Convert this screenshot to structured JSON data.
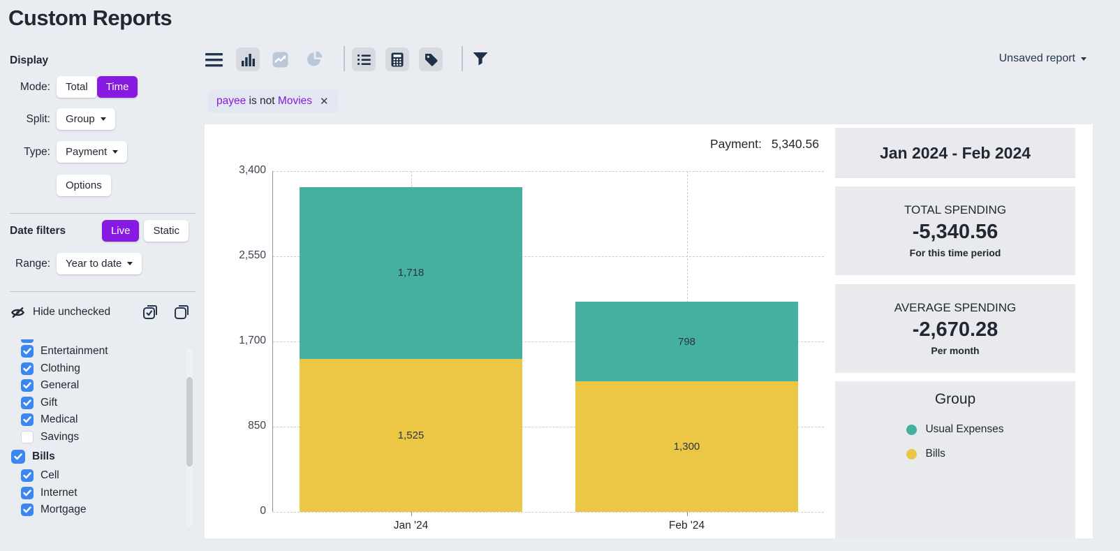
{
  "page": {
    "title": "Custom Reports",
    "report_menu_label": "Unsaved report"
  },
  "sidebar": {
    "display": {
      "heading": "Display",
      "mode_label": "Mode:",
      "mode_total": "Total",
      "mode_time": "Time",
      "mode_selected": "Time",
      "split_label": "Split:",
      "split_value": "Group",
      "type_label": "Type:",
      "type_value": "Payment",
      "options_label": "Options"
    },
    "date_filters": {
      "heading": "Date filters",
      "live": "Live",
      "static": "Static",
      "selected": "Live",
      "range_label": "Range:",
      "range_value": "Year to date"
    },
    "categories": {
      "hide_unchecked_label": "Hide unchecked",
      "select_all_icon": "select-all",
      "deselect_all_icon": "deselect-all",
      "items": [
        {
          "label": "",
          "checked": true,
          "indent": 1,
          "clipped": true
        },
        {
          "label": "Entertainment",
          "checked": true,
          "indent": 1
        },
        {
          "label": "Clothing",
          "checked": true,
          "indent": 1
        },
        {
          "label": "General",
          "checked": true,
          "indent": 1
        },
        {
          "label": "Gift",
          "checked": true,
          "indent": 1
        },
        {
          "label": "Medical",
          "checked": true,
          "indent": 1
        },
        {
          "label": "Savings",
          "checked": false,
          "indent": 1
        },
        {
          "label": "Bills",
          "checked": true,
          "indent": 0,
          "group": true
        },
        {
          "label": "Cell",
          "checked": true,
          "indent": 1
        },
        {
          "label": "Internet",
          "checked": true,
          "indent": 1
        },
        {
          "label": "Mortgage",
          "checked": true,
          "indent": 1
        }
      ]
    }
  },
  "toolbar": {
    "icons": [
      "menu",
      "bar-chart",
      "line-chart",
      "pie-chart",
      "list",
      "calculator",
      "tag",
      "filter"
    ],
    "active_icons": [
      "bar-chart",
      "list",
      "calculator",
      "tag"
    ],
    "muted_icons": [
      "line-chart",
      "pie-chart"
    ]
  },
  "filter_chip": {
    "field": "payee",
    "op": " is not ",
    "value": "Movies",
    "remove": "✕"
  },
  "chart_header": {
    "label": "Payment:",
    "value": "5,340.56"
  },
  "chart_data": {
    "type": "bar",
    "stacked": true,
    "categories": [
      "Jan '24",
      "Feb '24"
    ],
    "series": [
      {
        "name": "Usual Expenses",
        "color": "#45b09e",
        "values": [
          1718,
          798
        ],
        "labels": [
          "1,718",
          "798"
        ]
      },
      {
        "name": "Bills",
        "color": "#ecc645",
        "values": [
          1525,
          1300
        ],
        "labels": [
          "1,525",
          "1,300"
        ]
      }
    ],
    "ylim": [
      0,
      3400
    ],
    "yticks": [
      0,
      850,
      1700,
      2550,
      3400
    ],
    "ytick_labels": [
      "0",
      "850",
      "1,700",
      "2,550",
      "3,400"
    ],
    "grid": "dashed",
    "title": "",
    "xlabel": "",
    "ylabel": ""
  },
  "summary": {
    "date_range": "Jan 2024 - Feb 2024",
    "total": {
      "title": "TOTAL SPENDING",
      "value": "-5,340.56",
      "subtitle": "For this time period"
    },
    "average": {
      "title": "AVERAGE SPENDING",
      "value": "-2,670.28",
      "subtitle": "Per month"
    },
    "legend": {
      "title": "Group",
      "items": [
        {
          "label": "Usual Expenses",
          "color": "#45b09e"
        },
        {
          "label": "Bills",
          "color": "#ecc645"
        }
      ]
    }
  },
  "colors": {
    "accent_purple": "#8719e0",
    "checkbox_blue": "#3b87f1",
    "teal": "#45b09e",
    "yellow": "#ecc645",
    "navy": "#25354d"
  }
}
